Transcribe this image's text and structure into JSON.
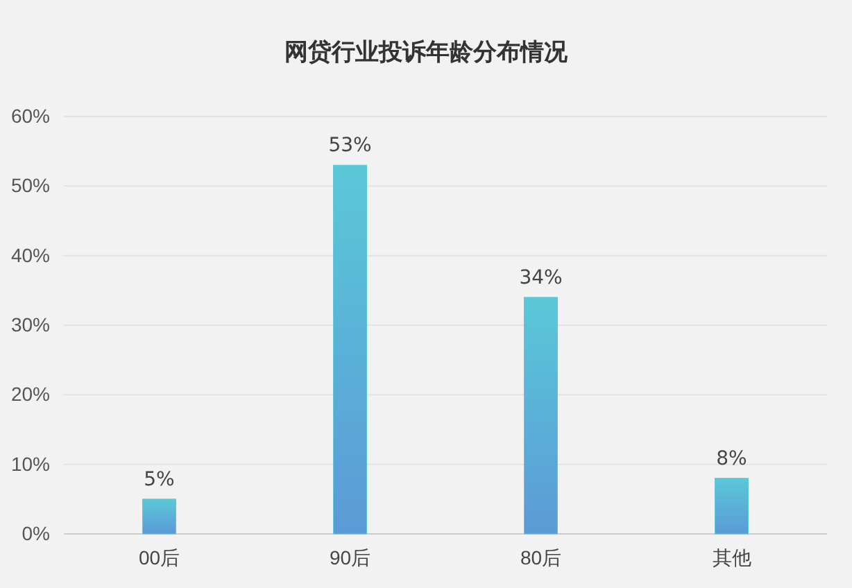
{
  "chart_data": {
    "type": "bar",
    "title": "网贷行业投诉年龄分布情况",
    "categories": [
      "00后",
      "90后",
      "80后",
      "其他"
    ],
    "values": [
      5,
      53,
      34,
      8
    ],
    "value_labels": [
      "5%",
      "53%",
      "34%",
      "8%"
    ],
    "color": "#5ac8d8",
    "ylim": [
      0,
      60
    ],
    "yticks": [
      {
        "value": 0,
        "label": "0%"
      },
      {
        "value": 10,
        "label": "10%"
      },
      {
        "value": 20,
        "label": "20%"
      },
      {
        "value": 30,
        "label": "30%"
      },
      {
        "value": 40,
        "label": "40%"
      },
      {
        "value": 50,
        "label": "50%"
      },
      {
        "value": 60,
        "label": "60%"
      }
    ],
    "grid": "y"
  }
}
